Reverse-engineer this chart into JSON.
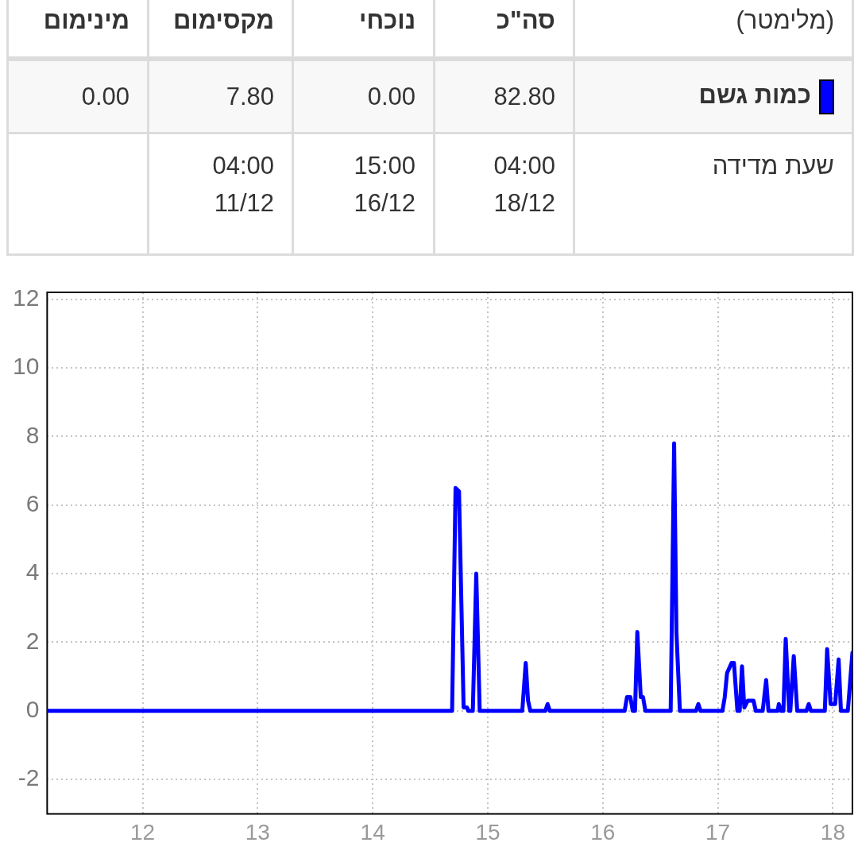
{
  "chart_data": [
    {
      "type": "other",
      "annotations": [
        "(מלימטר)"
      ],
      "categories": [
        "מינימום",
        "מקסימום",
        "נוכחי",
        "סה\"כ"
      ],
      "y_categories": [
        "כמות גשם",
        "שעת מדידה"
      ],
      "colors": [
        "#0000ff",
        null
      ],
      "cell_labels": [
        [
          "0.00",
          "7.80",
          "0.00",
          "82.80"
        ],
        [
          null,
          "04:00 11/12",
          "15:00 16/12",
          "04:00 18/12"
        ]
      ]
    },
    {
      "type": "line",
      "xlim": [
        11.17,
        18.17
      ],
      "xticks": [
        12,
        13,
        14,
        15,
        16,
        17,
        18
      ],
      "ylim": [
        -3,
        12.2
      ],
      "yticks": [
        -2,
        0,
        2,
        4,
        6,
        8,
        10,
        12
      ],
      "grid": true,
      "x": [
        11.17,
        14.69,
        14.72,
        14.75,
        14.79,
        14.82,
        14.83,
        14.87,
        14.9,
        14.93,
        15.3,
        15.33,
        15.35,
        15.37,
        15.5,
        15.52,
        15.54,
        16.19,
        16.21,
        16.24,
        16.26,
        16.28,
        16.3,
        16.33,
        16.35,
        16.37,
        16.59,
        16.62,
        16.64,
        16.67,
        16.81,
        16.83,
        16.85,
        17.04,
        17.06,
        17.08,
        17.12,
        17.14,
        17.17,
        17.19,
        17.21,
        17.23,
        17.26,
        17.31,
        17.33,
        17.39,
        17.42,
        17.44,
        17.52,
        17.53,
        17.55,
        17.57,
        17.59,
        17.62,
        17.63,
        17.66,
        17.69,
        17.77,
        17.79,
        17.81,
        17.93,
        17.95,
        17.98,
        18.02,
        18.05,
        18.07,
        18.13,
        18.17
      ],
      "series": [
        {
          "color": "#0000ff",
          "values": [
            0,
            0,
            6.5,
            6.4,
            0.1,
            0.1,
            0,
            0,
            4.0,
            0,
            0,
            1.4,
            0.3,
            0,
            0,
            0.2,
            0,
            0,
            0.4,
            0.4,
            0,
            0,
            2.3,
            0.4,
            0.4,
            0,
            0,
            7.8,
            2.3,
            0,
            0,
            0.2,
            0,
            0,
            0.4,
            1.1,
            1.4,
            1.4,
            0,
            0,
            1.3,
            0.1,
            0.3,
            0.3,
            0,
            0,
            0.9,
            0,
            0,
            0.2,
            0,
            0,
            2.1,
            0,
            0,
            1.6,
            0,
            0,
            0.2,
            0,
            0,
            1.8,
            0.2,
            0.2,
            1.5,
            0,
            0,
            1.7
          ]
        }
      ]
    }
  ]
}
